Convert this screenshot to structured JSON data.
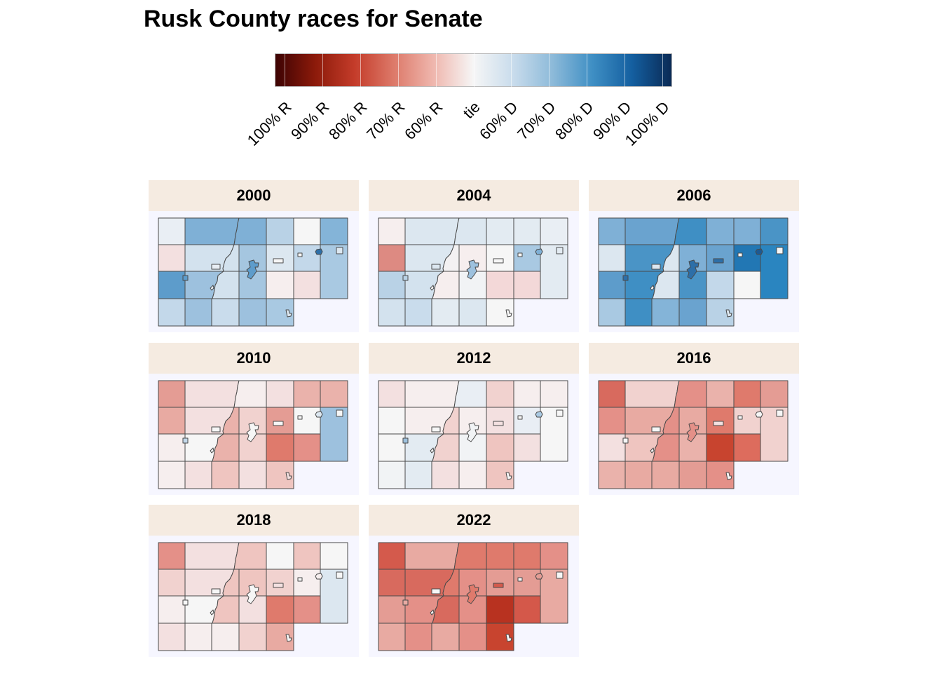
{
  "title": "Rusk County races for Senate",
  "legend": {
    "labels": [
      "100% R",
      "90% R",
      "80% R",
      "70% R",
      "60% R",
      "tie",
      "60% D",
      "70% D",
      "80% D",
      "90% D",
      "100% D"
    ],
    "colors": [
      "#3d0303",
      "#8c1a0a",
      "#c43c2a",
      "#dd7a6a",
      "#efb7ae",
      "#f6f6f6",
      "#c9dcec",
      "#8dbad9",
      "#3f8fc4",
      "#145fa0",
      "#0a2a55"
    ]
  },
  "panels": [
    {
      "year": "2000",
      "colors": {
        "r1c1": "#e9eef4",
        "r1c2": "#7fb0d6",
        "r1c3": "#7fb0d6",
        "r1c4": "#b9d2e6",
        "r1c5": "#f6f6f6",
        "r1c6": "#84b4d8",
        "r2c1": "#f3e0e0",
        "r2c2": "#d3e2ee",
        "r2c3": "#d3e2ee",
        "r2c4": "#a5c6e0",
        "r2c5": "#dce7f0",
        "r2c6": "#c3d8ea",
        "r2c7": "#a9c9e2",
        "r3c1": "#5d9ccb",
        "r3c2": "#9dc1de",
        "r3c3": "#d3e2ee",
        "r3c4": "#a5c6e0",
        "r3c5": "#f6eeee",
        "r3c6": "#f3e0e0",
        "r4c1": "#c3d8ea",
        "r4c2": "#9dc1de",
        "r4c3": "#c9dcec",
        "r4c4": "#9dc1de",
        "r4c5": "#a9c9e2",
        "v1": "#5d9ccb",
        "v2": "#e8eef4",
        "v3": "#e8eef4",
        "v4": "#f6f6f6",
        "v5": "#2d6fa8",
        "v6": "#dce7f0",
        "v7": "#f6f6f6",
        "v8": "#5d9ccb",
        "v9": "#dce7f0"
      }
    },
    {
      "year": "2004",
      "colors": {
        "r1c1": "#f6eeee",
        "r1c2": "#dce7f0",
        "r1c3": "#dce7f0",
        "r1c4": "#e3ebf2",
        "r1c5": "#e3ebf2",
        "r1c6": "#e9eef4",
        "r2c1": "#dd8a82",
        "r2c2": "#dce7f0",
        "r2c3": "#f3f1f2",
        "r2c4": "#f6eeee",
        "r2c5": "#f6f6f6",
        "r2c6": "#a9c9e2",
        "r2c7": "#e3ebf2",
        "r3c1": "#b9d2e6",
        "r3c2": "#d3e2ee",
        "r3c3": "#f6eeee",
        "r3c4": "#f1f3f5",
        "r3c5": "#f3d8d8",
        "r3c6": "#f3d8d8",
        "r4c1": "#d3e2ee",
        "r4c2": "#c9dcec",
        "r4c3": "#e3ebf2",
        "r4c4": "#dce7f0",
        "r4c5": "#f6f6f6",
        "v1": "#b9d2e6",
        "v2": "#dce7f0",
        "v3": "#f6f6f6",
        "v4": "#f6f6f6",
        "v5": "#7fb0d6",
        "v6": "#e3ebf2",
        "v7": "#f6f6f6",
        "v8": "#9dc1de",
        "v9": "#f6f6f6"
      }
    },
    {
      "year": "2006",
      "colors": {
        "r1c1": "#7fb0d6",
        "r1c2": "#6aa3cf",
        "r1c3": "#3f8fc4",
        "r1c4": "#7fb0d6",
        "r1c5": "#7fb0d6",
        "r1c6": "#4a94c6",
        "r2c1": "#dce7f0",
        "r2c2": "#4a94c6",
        "r2c3": "#dce7f0",
        "r2c4": "#7fb0d6",
        "r2c5": "#6aa3cf",
        "r2c6": "#2277b4",
        "r2c7": "#2a85c0",
        "r3c1": "#5d9ccb",
        "r3c2": "#3f8fc4",
        "r3c3": "#dce7f0",
        "r3c4": "#4a94c6",
        "r3c5": "#c3d8ea",
        "r3c6": "#f6f6f6",
        "r4c1": "#a9c9e2",
        "r4c2": "#3f8fc4",
        "r4c3": "#84b4d8",
        "r4c4": "#6aa3cf",
        "r4c5": "#b9d2e6",
        "v1": "#2d6fa8",
        "v2": "#dce7f0",
        "v3": "#f6f6f6",
        "v4": "#2d6fa8",
        "v5": "#1c5a94",
        "v6": "#f6f6f6",
        "v7": "#f6f6f6",
        "v8": "#2d6fa8",
        "v9": "#dce7f0"
      }
    },
    {
      "year": "2010",
      "colors": {
        "r1c1": "#e49c94",
        "r1c2": "#f3e0e0",
        "r1c3": "#f6eeee",
        "r1c4": "#f3e0e0",
        "r1c5": "#eab2ab",
        "r1c6": "#eab2ab",
        "r2c1": "#e8aaa2",
        "r2c2": "#f3e0e0",
        "r2c3": "#eab2ab",
        "r2c4": "#f1d2cf",
        "r2c5": "#e49c94",
        "r2c6": "#f6f6f6",
        "r2c7": "#9dc1de",
        "r3c1": "#f6eeee",
        "r3c2": "#f6f6f6",
        "r3c3": "#eab2ab",
        "r3c4": "#f1d2cf",
        "r3c5": "#df7a6c",
        "r3c6": "#e49088",
        "r4c1": "#f6eeee",
        "r4c2": "#f3e0e0",
        "r4c3": "#efc5c0",
        "r4c4": "#f3e0e0",
        "r4c5": "#efc5c0",
        "v1": "#c3d8ea",
        "v2": "#f6f6f6",
        "v3": "#f6f6f6",
        "v4": "#f6f6f6",
        "v5": "#dce7f0",
        "v6": "#f6f6f6",
        "v7": "#f6f6f6",
        "v8": "#f6f6f6",
        "v9": "#f3e0e0"
      }
    },
    {
      "year": "2012",
      "colors": {
        "r1c1": "#f3e0e0",
        "r1c2": "#f6eeee",
        "r1c3": "#e9eef4",
        "r1c4": "#f1d2cf",
        "r1c5": "#f6eeee",
        "r1c6": "#f6eeee",
        "r2c1": "#f6f6f6",
        "r2c2": "#f6eeee",
        "r2c3": "#f1d2cf",
        "r2c4": "#f6eeee",
        "r2c5": "#f3e0e0",
        "r2c6": "#e9eef4",
        "r2c7": "#f6f6f6",
        "r3c1": "#f6f6f6",
        "r3c2": "#e3ebf2",
        "r3c3": "#f1d2cf",
        "r3c4": "#f1f3f5",
        "r3c5": "#efc5c0",
        "r3c6": "#f3e0e0",
        "r4c1": "#f1f3f5",
        "r4c2": "#e3ebf2",
        "r4c3": "#f3e0e0",
        "r4c4": "#f6eeee",
        "r4c5": "#efc5c0",
        "v1": "#9dc1de",
        "v2": "#f6f6f6",
        "v3": "#f6f6f6",
        "v4": "#f3e0e0",
        "v5": "#a9c9e2",
        "v6": "#f6f6f6",
        "v7": "#f6f6f6",
        "v8": "#f1f3f5",
        "v9": "#f6f6f6"
      }
    },
    {
      "year": "2016",
      "colors": {
        "r1c1": "#d86a5e",
        "r1c2": "#f1d2cf",
        "r1c3": "#e49088",
        "r1c4": "#eab2ab",
        "r1c5": "#df7a6c",
        "r1c6": "#e49c94",
        "r2c1": "#e49088",
        "r2c2": "#e8aaa2",
        "r2c3": "#e49088",
        "r2c4": "#e8aaa2",
        "r2c5": "#df7a6c",
        "r2c6": "#f1d2cf",
        "r2c7": "#f1d2cf",
        "r3c1": "#f3e0e0",
        "r3c2": "#efc5c0",
        "r3c3": "#e49088",
        "r3c4": "#eab2ab",
        "r3c5": "#c8442f",
        "r3c6": "#dd6c5d",
        "r4c1": "#eab2ab",
        "r4c2": "#e8aaa2",
        "r4c3": "#e8aaa2",
        "r4c4": "#e49c94",
        "r4c5": "#e49088",
        "v1": "#f6f6f6",
        "v2": "#f6f6f6",
        "v3": "#f6f6f6",
        "v4": "#f3e0e0",
        "v5": "#f6f6f6",
        "v6": "#f6f6f6",
        "v7": "#f6f6f6",
        "v8": "#e49088",
        "v9": "#f6f6f6"
      }
    },
    {
      "year": "2018",
      "colors": {
        "r1c1": "#e49088",
        "r1c2": "#f3e0e0",
        "r1c3": "#efc5c0",
        "r1c4": "#f6f6f6",
        "r1c5": "#efc5c0",
        "r1c6": "#f6f6f6",
        "r2c1": "#f1d2cf",
        "r2c2": "#f3e0e0",
        "r2c3": "#efc5c0",
        "r2c4": "#efc5c0",
        "r2c5": "#f1d2cf",
        "r2c6": "#f6eeee",
        "r2c7": "#dce7f0",
        "r3c1": "#f6eeee",
        "r3c2": "#f6f6f6",
        "r3c3": "#efc5c0",
        "r3c4": "#f3e0e0",
        "r3c5": "#df7a6c",
        "r3c6": "#e49088",
        "r4c1": "#f3e0e0",
        "r4c2": "#f6eeee",
        "r4c3": "#f6eeee",
        "r4c4": "#f1d2cf",
        "r4c5": "#e8aaa2",
        "v1": "#f6f6f6",
        "v2": "#f6f6f6",
        "v3": "#f6f6f6",
        "v4": "#f3e0e0",
        "v5": "#f6eeee",
        "v6": "#f6f6f6",
        "v7": "#f6f6f6",
        "v8": "#f6f6f6",
        "v9": "#f6f6f6"
      }
    },
    {
      "year": "2022",
      "colors": {
        "r1c1": "#d45a4c",
        "r1c2": "#e8aaa2",
        "r1c3": "#df7a6c",
        "r1c4": "#df7a6c",
        "r1c5": "#df7a6c",
        "r1c6": "#e49088",
        "r2c1": "#d86a5e",
        "r2c2": "#d86a5e",
        "r2c3": "#df7a6c",
        "r2c4": "#e49088",
        "r2c5": "#e49c94",
        "r2c6": "#e49c94",
        "r2c7": "#e8aaa2",
        "r3c1": "#e49c94",
        "r3c2": "#e49088",
        "r3c3": "#d86a5e",
        "r3c4": "#e49088",
        "r3c5": "#b83220",
        "r3c6": "#d4584a",
        "r4c1": "#e8aaa2",
        "r4c2": "#e49088",
        "r4c3": "#e8aaa2",
        "r4c4": "#e49088",
        "r4c5": "#c8442f",
        "v1": "#e8aaa2",
        "v2": "#f6f6f6",
        "v3": "#f6f6f6",
        "v4": "#d45a4c",
        "v5": "#e49c94",
        "v6": "#f6f6f6",
        "v7": "#f6f6f6",
        "v8": "#df7a6c",
        "v9": "#f6f6f6"
      }
    }
  ]
}
